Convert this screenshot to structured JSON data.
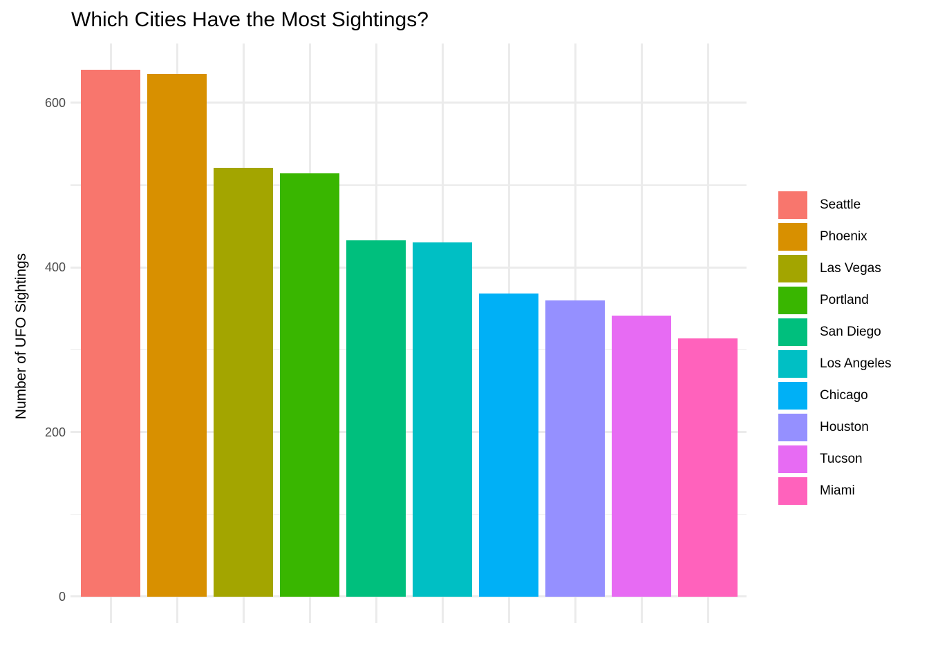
{
  "title": "Which Cities Have the Most Sightings?",
  "chart_data": {
    "type": "bar",
    "title": "Which Cities Have the Most Sightings?",
    "xlabel": "",
    "ylabel": "Number of UFO Sightings",
    "categories": [
      "Seattle",
      "Phoenix",
      "Las Vegas",
      "Portland",
      "San Diego",
      "Los Angeles",
      "Chicago",
      "Houston",
      "Tucson",
      "Miami"
    ],
    "values": [
      640,
      635,
      521,
      514,
      433,
      430,
      368,
      360,
      341,
      314
    ],
    "bar_colors": [
      "#F8766D",
      "#D89000",
      "#A3A500",
      "#39B600",
      "#00BF7D",
      "#00BFC4",
      "#00B0F6",
      "#9590FF",
      "#E76BF3",
      "#FF62BC"
    ],
    "ylim": [
      -32,
      672
    ],
    "yticks": [
      0,
      200,
      400,
      600
    ],
    "ytick_labels": [
      "0",
      "200",
      "400",
      "600"
    ],
    "yminor": [
      100,
      300,
      500
    ],
    "grid": "on",
    "legend_position": "right",
    "legend_entries": [
      "Seattle",
      "Phoenix",
      "Las Vegas",
      "Portland",
      "San Diego",
      "Los Angeles",
      "Chicago",
      "Houston",
      "Tucson",
      "Miami"
    ]
  },
  "style_colors": {
    "grid": "#EBEBEB",
    "tick_label": "#4D4D4D",
    "text": "#000000",
    "background": "#FFFFFF"
  }
}
